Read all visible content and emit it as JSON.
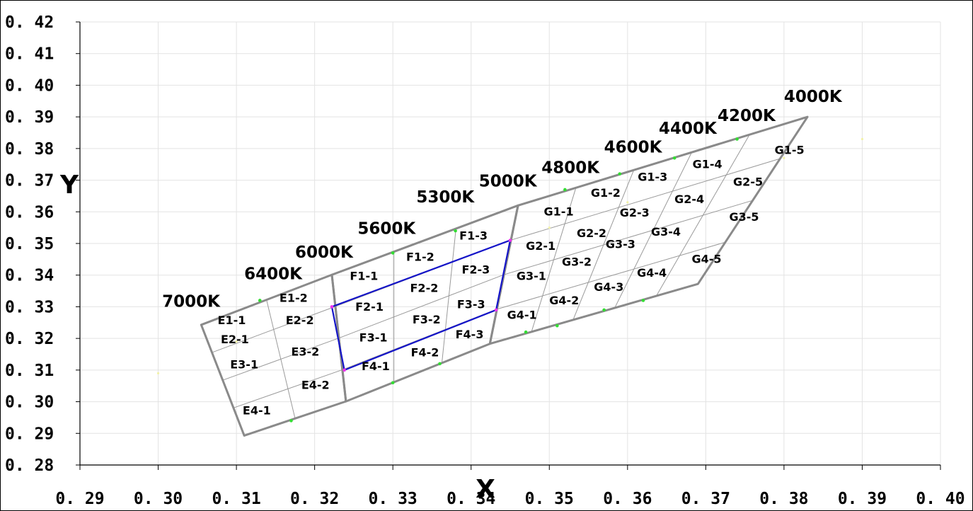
{
  "chart_data": {
    "type": "scatter",
    "xlabel": "X",
    "ylabel": "Y",
    "xlim": [
      0.29,
      0.4
    ],
    "ylim": [
      0.28,
      0.42
    ],
    "x_ticks": [
      "0. 29",
      "0. 30",
      "0. 31",
      "0. 32",
      "0. 33",
      "0. 34",
      "0. 35",
      "0. 36",
      "0. 37",
      "0. 38",
      "0. 39",
      "0. 40"
    ],
    "y_ticks": [
      "0. 28",
      "0. 29",
      "0. 30",
      "0. 31",
      "0. 32",
      "0. 33",
      "0. 34",
      "0. 35",
      "0. 36",
      "0. 37",
      "0. 38",
      "0. 39",
      "0. 40",
      "0. 41",
      "0. 42"
    ],
    "grid": true,
    "cct_labels": [
      {
        "text": "7000K",
        "x": 0.3005,
        "y": 0.33
      },
      {
        "text": "6400K",
        "x": 0.311,
        "y": 0.3387
      },
      {
        "text": "6000K",
        "x": 0.3175,
        "y": 0.3455
      },
      {
        "text": "5600K",
        "x": 0.3255,
        "y": 0.353
      },
      {
        "text": "5300K",
        "x": 0.333,
        "y": 0.363
      },
      {
        "text": "5000K",
        "x": 0.341,
        "y": 0.368
      },
      {
        "text": "4800K",
        "x": 0.349,
        "y": 0.3723
      },
      {
        "text": "4600K",
        "x": 0.357,
        "y": 0.3787
      },
      {
        "text": "4400K",
        "x": 0.364,
        "y": 0.3847
      },
      {
        "text": "4200K",
        "x": 0.3715,
        "y": 0.3887
      },
      {
        "text": "4000K",
        "x": 0.38,
        "y": 0.3947
      }
    ],
    "regions": {
      "E": {
        "x": [
          0.3055,
          0.3222,
          0.324,
          0.311
        ],
        "y": [
          0.3243,
          0.3401,
          0.3001,
          0.2893
        ]
      },
      "F": {
        "x": [
          0.3222,
          0.346,
          0.3424,
          0.324
        ],
        "y": [
          0.3401,
          0.362,
          0.3183,
          0.3001
        ]
      },
      "G": {
        "x": [
          0.346,
          0.383,
          0.369,
          0.3424
        ],
        "y": [
          0.362,
          0.39,
          0.3372,
          0.3183
        ]
      }
    },
    "highlight_quad": {
      "x": [
        0.3222,
        0.345,
        0.3432,
        0.3238
      ],
      "y": [
        0.33,
        0.351,
        0.329,
        0.31
      ]
    },
    "marker_points": [
      {
        "x": 0.313,
        "y": 0.332
      },
      {
        "x": 0.33,
        "y": 0.347
      },
      {
        "x": 0.338,
        "y": 0.354
      },
      {
        "x": 0.352,
        "y": 0.367
      },
      {
        "x": 0.359,
        "y": 0.372
      },
      {
        "x": 0.366,
        "y": 0.377
      },
      {
        "x": 0.374,
        "y": 0.383
      },
      {
        "x": 0.317,
        "y": 0.294
      },
      {
        "x": 0.33,
        "y": 0.306
      },
      {
        "x": 0.336,
        "y": 0.312
      },
      {
        "x": 0.347,
        "y": 0.322
      },
      {
        "x": 0.351,
        "y": 0.324
      },
      {
        "x": 0.357,
        "y": 0.329
      },
      {
        "x": 0.362,
        "y": 0.332
      }
    ],
    "highlight_points": [
      {
        "x": 0.3222,
        "y": 0.33
      },
      {
        "x": 0.345,
        "y": 0.351
      },
      {
        "x": 0.3432,
        "y": 0.329
      },
      {
        "x": 0.3238,
        "y": 0.31
      }
    ],
    "faint_points": [
      {
        "x": 0.3,
        "y": 0.309
      },
      {
        "x": 0.31,
        "y": 0.319
      },
      {
        "x": 0.35,
        "y": 0.355
      },
      {
        "x": 0.36,
        "y": 0.363
      },
      {
        "x": 0.38,
        "y": 0.377
      },
      {
        "x": 0.39,
        "y": 0.383
      }
    ],
    "bin_labels": [
      {
        "text": "E1-1",
        "x": 0.3076,
        "y": 0.3245
      },
      {
        "text": "E1-2",
        "x": 0.3155,
        "y": 0.3315
      },
      {
        "text": "E2-1",
        "x": 0.308,
        "y": 0.3185
      },
      {
        "text": "E2-2",
        "x": 0.3163,
        "y": 0.3245
      },
      {
        "text": "E3-1",
        "x": 0.3092,
        "y": 0.3105
      },
      {
        "text": "E3-2",
        "x": 0.317,
        "y": 0.3145
      },
      {
        "text": "E4-1",
        "x": 0.3108,
        "y": 0.296
      },
      {
        "text": "E4-2",
        "x": 0.3183,
        "y": 0.304
      },
      {
        "text": "F1-1",
        "x": 0.3245,
        "y": 0.3385
      },
      {
        "text": "F1-2",
        "x": 0.3317,
        "y": 0.3445
      },
      {
        "text": "F1-3",
        "x": 0.3385,
        "y": 0.3512
      },
      {
        "text": "F2-1",
        "x": 0.3252,
        "y": 0.3287
      },
      {
        "text": "F2-2",
        "x": 0.3322,
        "y": 0.3347
      },
      {
        "text": "F2-3",
        "x": 0.3388,
        "y": 0.3405
      },
      {
        "text": "F3-1",
        "x": 0.3257,
        "y": 0.319
      },
      {
        "text": "F3-2",
        "x": 0.3325,
        "y": 0.3247
      },
      {
        "text": "F3-3",
        "x": 0.3382,
        "y": 0.3295
      },
      {
        "text": "F4-1",
        "x": 0.326,
        "y": 0.31
      },
      {
        "text": "F4-2",
        "x": 0.3323,
        "y": 0.3143
      },
      {
        "text": "F4-3",
        "x": 0.338,
        "y": 0.32
      },
      {
        "text": "G1-1",
        "x": 0.3493,
        "y": 0.3588
      },
      {
        "text": "G1-2",
        "x": 0.3553,
        "y": 0.3648
      },
      {
        "text": "G1-3",
        "x": 0.3613,
        "y": 0.3698
      },
      {
        "text": "G1-4",
        "x": 0.3683,
        "y": 0.3738
      },
      {
        "text": "G1-5",
        "x": 0.3788,
        "y": 0.3783
      },
      {
        "text": "G2-1",
        "x": 0.347,
        "y": 0.348
      },
      {
        "text": "G2-2",
        "x": 0.3535,
        "y": 0.352
      },
      {
        "text": "G2-3",
        "x": 0.359,
        "y": 0.3585
      },
      {
        "text": "G2-4",
        "x": 0.366,
        "y": 0.3628
      },
      {
        "text": "G2-5",
        "x": 0.3735,
        "y": 0.3682
      },
      {
        "text": "G3-1",
        "x": 0.3458,
        "y": 0.3385
      },
      {
        "text": "G3-2",
        "x": 0.3516,
        "y": 0.343
      },
      {
        "text": "G3-3",
        "x": 0.3572,
        "y": 0.3485
      },
      {
        "text": "G3-4",
        "x": 0.363,
        "y": 0.3525
      },
      {
        "text": "G3-5",
        "x": 0.373,
        "y": 0.3572
      },
      {
        "text": "G4-1",
        "x": 0.3446,
        "y": 0.3262
      },
      {
        "text": "G4-2",
        "x": 0.35,
        "y": 0.3308
      },
      {
        "text": "G4-3",
        "x": 0.3557,
        "y": 0.335
      },
      {
        "text": "G4-4",
        "x": 0.3612,
        "y": 0.3395
      },
      {
        "text": "G4-5",
        "x": 0.3682,
        "y": 0.3438
      }
    ]
  }
}
